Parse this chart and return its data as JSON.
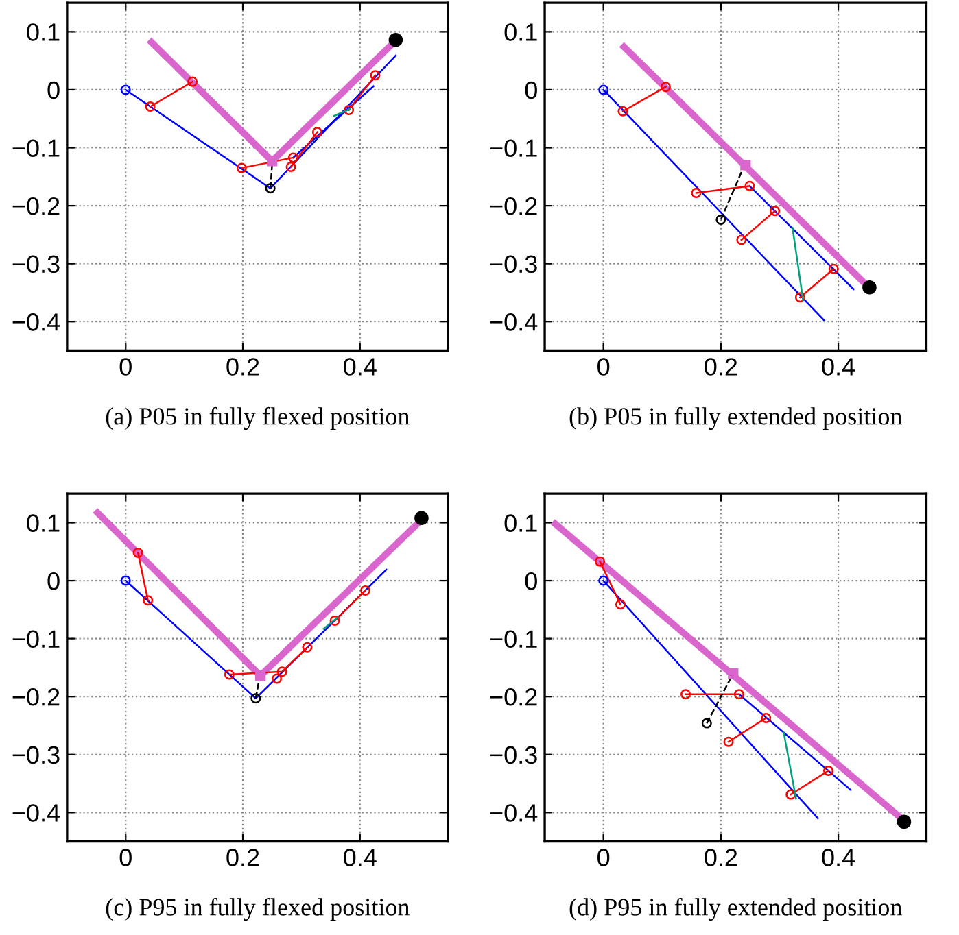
{
  "chart_data": [
    {
      "type": "line",
      "title": "(a) P05 in fully flexed position",
      "xlim": [
        -0.1,
        0.55
      ],
      "ylim": [
        -0.45,
        0.15
      ],
      "xticks": [
        0,
        0.2,
        0.4
      ],
      "yticks": [
        {
          "value": -0.4,
          "label": "−0.4"
        },
        {
          "value": -0.3,
          "label": "−0.3"
        },
        {
          "value": -0.2,
          "label": "−0.2"
        },
        {
          "value": -0.1,
          "label": "−0.1"
        },
        0,
        0.1
      ],
      "grid": true,
      "series": [
        {
          "color": "#d966cc",
          "x": [
            0.044,
            0.25,
            0.458
          ],
          "values": [
            0.082,
            -0.123,
            0.082
          ]
        },
        {
          "color": "#0000ff",
          "x": [
            0,
            0.247,
            0.461
          ],
          "values": [
            0,
            -0.17,
            0.059
          ]
        },
        {
          "color": "#0000ff",
          "x": [
            0.286,
            0.423
          ],
          "values": [
            -0.117,
            0.006
          ]
        },
        {
          "color": "#ff0000",
          "x": [
            0.042,
            0.114
          ],
          "values": [
            -0.029,
            0.014
          ],
          "marker": "circle"
        },
        {
          "color": "#ff0000",
          "x": [
            0.198,
            0.286
          ],
          "values": [
            -0.135,
            -0.117
          ],
          "marker": "circle"
        },
        {
          "color": "#ff0000",
          "x": [
            0.282,
            0.327
          ],
          "values": [
            -0.133,
            -0.073
          ],
          "marker": "circle"
        },
        {
          "color": "#ff0000",
          "x": [
            0.381,
            0.426
          ],
          "values": [
            -0.035,
            0.025
          ],
          "marker": "circle"
        },
        {
          "color": "#00a080",
          "x": [
            0.356,
            0.383
          ],
          "values": [
            -0.045,
            -0.033
          ]
        },
        {
          "color": "#000000",
          "x": [
            0.247,
            0.25
          ],
          "values": [
            -0.17,
            -0.129
          ],
          "line_style": "dashed"
        },
        {
          "color": "#0000ff",
          "x": [
            0
          ],
          "values": [
            0
          ],
          "marker": "circle"
        },
        {
          "color": "#000000",
          "x": [
            0.247
          ],
          "values": [
            -0.17
          ],
          "marker": "circle"
        },
        {
          "type": "scatter",
          "color": "#d966cc",
          "x": [
            0.25
          ],
          "values": [
            -0.123
          ],
          "marker": "square"
        },
        {
          "type": "scatter",
          "color": "#000000",
          "x": [
            0.461
          ],
          "values": [
            0.086
          ],
          "marker": "circle"
        }
      ]
    },
    {
      "type": "line",
      "title": "(b) P05 in fully extended position",
      "xlim": [
        -0.1,
        0.55
      ],
      "ylim": [
        -0.45,
        0.15
      ],
      "xticks": [
        0,
        0.2,
        0.4
      ],
      "yticks": [
        {
          "value": -0.4,
          "label": "−0.4"
        },
        {
          "value": -0.3,
          "label": "−0.3"
        },
        {
          "value": -0.2,
          "label": "−0.2"
        },
        {
          "value": -0.1,
          "label": "−0.1"
        },
        0,
        0.1
      ],
      "grid": true,
      "series": [
        {
          "color": "#d966cc",
          "x": [
            0.035,
            0.447
          ],
          "values": [
            0.074,
            -0.336
          ]
        },
        {
          "color": "#0000ff",
          "x": [
            0,
            0.376
          ],
          "values": [
            0,
            -0.398
          ]
        },
        {
          "color": "#0000ff",
          "x": [
            0.249,
            0.426
          ],
          "values": [
            -0.166,
            -0.344
          ]
        },
        {
          "color": "#ff0000",
          "x": [
            0.033,
            0.106
          ],
          "values": [
            -0.037,
            0.005
          ],
          "marker": "circle"
        },
        {
          "color": "#ff0000",
          "x": [
            0.158,
            0.249
          ],
          "values": [
            -0.178,
            -0.166
          ],
          "marker": "circle"
        },
        {
          "color": "#ff0000",
          "x": [
            0.235,
            0.292
          ],
          "values": [
            -0.259,
            -0.209
          ],
          "marker": "circle"
        },
        {
          "color": "#ff0000",
          "x": [
            0.335,
            0.392
          ],
          "values": [
            -0.358,
            -0.309
          ],
          "marker": "circle"
        },
        {
          "color": "#00a080",
          "x": [
            0.322,
            0.34
          ],
          "values": [
            -0.238,
            -0.363
          ]
        },
        {
          "color": "#000000",
          "x": [
            0.2,
            0.239
          ],
          "values": [
            -0.224,
            -0.133
          ],
          "line_style": "dashed"
        },
        {
          "color": "#0000ff",
          "x": [
            0
          ],
          "values": [
            0
          ],
          "marker": "circle"
        },
        {
          "color": "#000000",
          "x": [
            0.2
          ],
          "values": [
            -0.224
          ],
          "marker": "circle"
        },
        {
          "type": "scatter",
          "color": "#d966cc",
          "x": [
            0.242
          ],
          "values": [
            -0.13
          ],
          "marker": "square"
        },
        {
          "type": "scatter",
          "color": "#000000",
          "x": [
            0.453
          ],
          "values": [
            -0.341
          ],
          "marker": "circle"
        }
      ]
    },
    {
      "type": "line",
      "title": "(c) P95 in fully flexed position",
      "xlim": [
        -0.1,
        0.55
      ],
      "ylim": [
        -0.45,
        0.15
      ],
      "xticks": [
        0,
        0.2,
        0.4
      ],
      "yticks": [
        {
          "value": -0.4,
          "label": "−0.4"
        },
        {
          "value": -0.3,
          "label": "−0.3"
        },
        {
          "value": -0.2,
          "label": "−0.2"
        },
        {
          "value": -0.1,
          "label": "−0.1"
        },
        0,
        0.1
      ],
      "grid": true,
      "series": [
        {
          "color": "#d966cc",
          "x": [
            -0.048,
            0.23,
            0.504
          ],
          "values": [
            0.117,
            -0.164,
            0.104
          ]
        },
        {
          "color": "#0000ff",
          "x": [
            0,
            0.222,
            0.445
          ],
          "values": [
            0,
            -0.203,
            0.019
          ]
        },
        {
          "color": "#ff0000",
          "x": [
            0.021,
            0.038
          ],
          "values": [
            0.048,
            -0.034
          ],
          "marker": "circle"
        },
        {
          "color": "#ff0000",
          "x": [
            0.177,
            0.267,
            0.31
          ],
          "values": [
            -0.162,
            -0.157,
            -0.115
          ],
          "marker": "circle"
        },
        {
          "color": "#ff0000",
          "x": [
            0.258
          ],
          "values": [
            -0.169
          ],
          "marker": "circle"
        },
        {
          "color": "#ff0000",
          "x": [
            0.357,
            0.409
          ],
          "values": [
            -0.069,
            -0.017
          ],
          "marker": "circle"
        },
        {
          "color": "#00a080",
          "x": [
            0.338,
            0.361
          ],
          "values": [
            -0.083,
            -0.064
          ]
        },
        {
          "color": "#000000",
          "x": [
            0.222,
            0.228
          ],
          "values": [
            -0.203,
            -0.17
          ],
          "line_style": "dashed"
        },
        {
          "color": "#0000ff",
          "x": [
            0
          ],
          "values": [
            0
          ],
          "marker": "circle"
        },
        {
          "color": "#000000",
          "x": [
            0.222
          ],
          "values": [
            -0.203
          ],
          "marker": "circle"
        },
        {
          "type": "scatter",
          "color": "#d966cc",
          "x": [
            0.23
          ],
          "values": [
            -0.164
          ],
          "marker": "square"
        },
        {
          "type": "scatter",
          "color": "#000000",
          "x": [
            0.505
          ],
          "values": [
            0.108
          ],
          "marker": "circle"
        }
      ]
    },
    {
      "type": "line",
      "title": "(d) P95 in fully extended position",
      "xlim": [
        -0.1,
        0.55
      ],
      "ylim": [
        -0.45,
        0.15
      ],
      "xticks": [
        0,
        0.2,
        0.4
      ],
      "yticks": [
        {
          "value": -0.4,
          "label": "−0.4"
        },
        {
          "value": -0.3,
          "label": "−0.3"
        },
        {
          "value": -0.2,
          "label": "−0.2"
        },
        {
          "value": -0.1,
          "label": "−0.1"
        },
        0,
        0.1
      ],
      "grid": true,
      "series": [
        {
          "color": "#d966cc",
          "x": [
            -0.082,
            0.506
          ],
          "values": [
            0.098,
            -0.409
          ]
        },
        {
          "color": "#0000ff",
          "x": [
            0,
            0.365
          ],
          "values": [
            0,
            -0.41
          ]
        },
        {
          "color": "#0000ff",
          "x": [
            0.231,
            0.421
          ],
          "values": [
            -0.196,
            -0.361
          ]
        },
        {
          "color": "#ff0000",
          "x": [
            -0.006,
            0.029
          ],
          "values": [
            0.033,
            -0.041
          ],
          "marker": "circle"
        },
        {
          "color": "#ff0000",
          "x": [
            0.14,
            0.231
          ],
          "values": [
            -0.196,
            -0.196
          ],
          "marker": "circle"
        },
        {
          "color": "#ff0000",
          "x": [
            0.213,
            0.277
          ],
          "values": [
            -0.278,
            -0.237
          ],
          "marker": "circle"
        },
        {
          "color": "#ff0000",
          "x": [
            0.319,
            0.383
          ],
          "values": [
            -0.369,
            -0.328
          ],
          "marker": "circle"
        },
        {
          "color": "#00a080",
          "x": [
            0.307,
            0.328
          ],
          "values": [
            -0.262,
            -0.376
          ]
        },
        {
          "color": "#000000",
          "x": [
            0.176,
            0.22
          ],
          "values": [
            -0.246,
            -0.162
          ],
          "line_style": "dashed"
        },
        {
          "color": "#0000ff",
          "x": [
            0
          ],
          "values": [
            0
          ],
          "marker": "circle"
        },
        {
          "color": "#000000",
          "x": [
            0.176
          ],
          "values": [
            -0.246
          ],
          "marker": "circle"
        },
        {
          "type": "scatter",
          "color": "#d966cc",
          "x": [
            0.221
          ],
          "values": [
            -0.16
          ],
          "marker": "square"
        },
        {
          "type": "scatter",
          "color": "#000000",
          "x": [
            0.512
          ],
          "values": [
            -0.416
          ],
          "marker": "circle"
        }
      ]
    }
  ]
}
